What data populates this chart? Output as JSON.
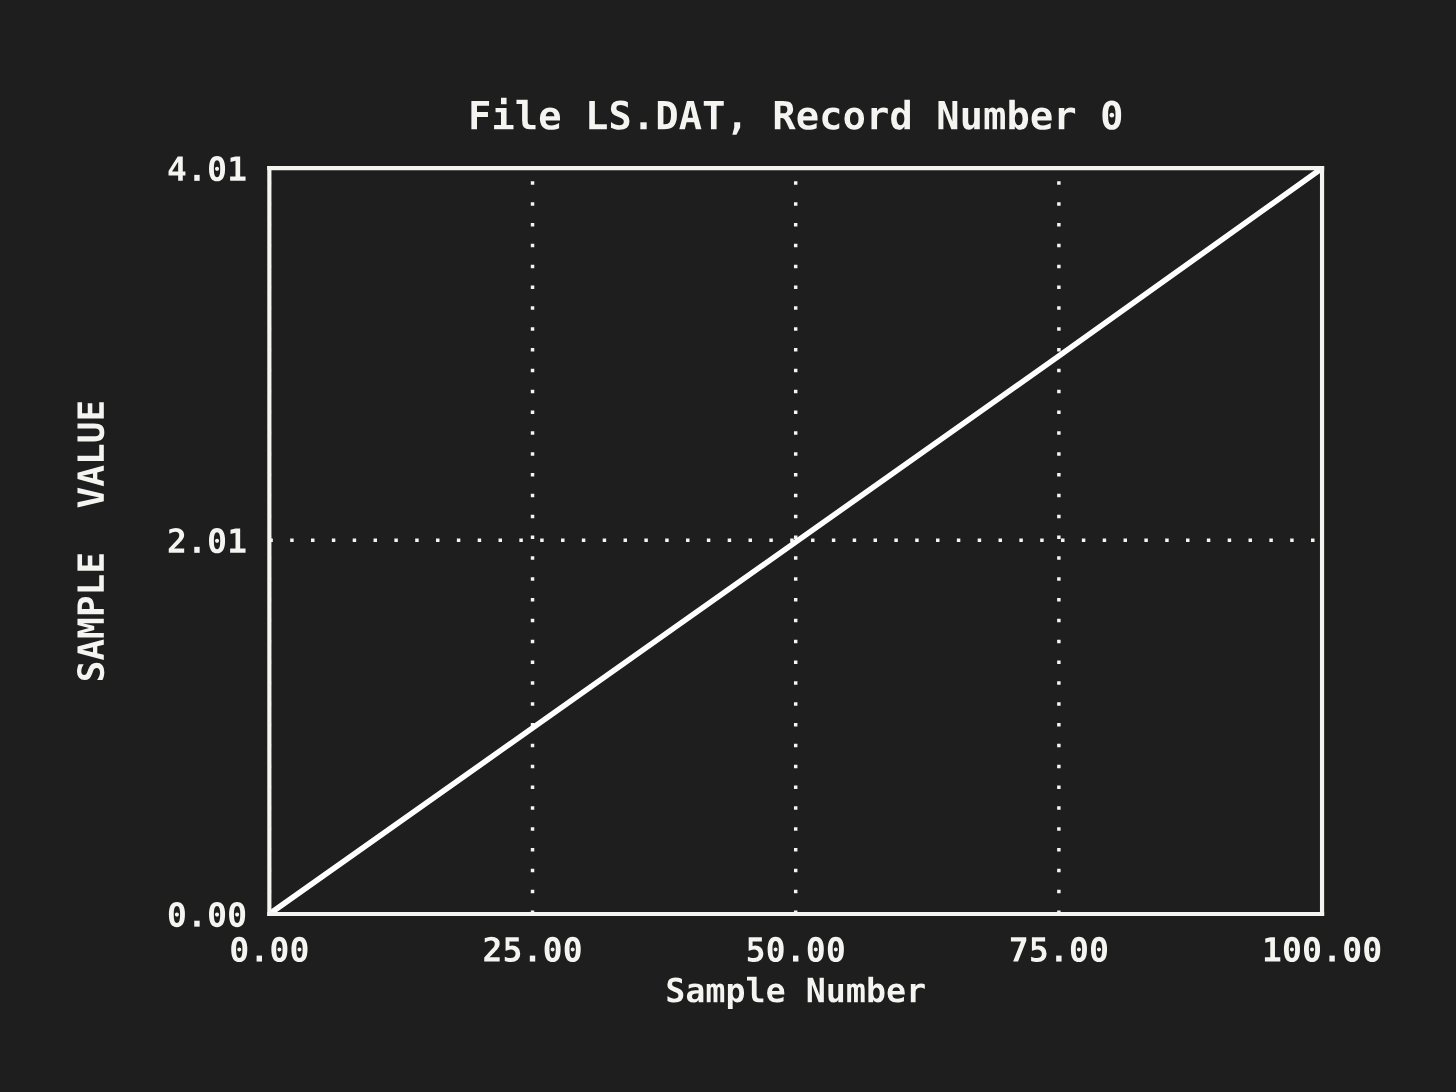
{
  "chart_data": {
    "type": "line",
    "title": "File LS.DAT, Record Number 0",
    "xlabel": "Sample Number",
    "ylabel": "SAMPLE  VALUE",
    "x": [
      0,
      25,
      50,
      75,
      100
    ],
    "series": [
      {
        "color": "#ffffff",
        "values": [
          0.0,
          1.0,
          2.0,
          3.0,
          4.01
        ]
      }
    ],
    "xlim": [
      0,
      100
    ],
    "ylim": [
      0,
      4.01
    ],
    "xticks": [
      {
        "value": 0,
        "label": "0.00"
      },
      {
        "value": 25,
        "label": "25.00"
      },
      {
        "value": 50,
        "label": "50.00"
      },
      {
        "value": 75,
        "label": "75.00"
      },
      {
        "value": 100,
        "label": "100.00"
      }
    ],
    "yticks": [
      {
        "value": 0,
        "label": "0.00"
      },
      {
        "value": 2.01,
        "label": "2.01"
      },
      {
        "value": 4.01,
        "label": "4.01"
      }
    ],
    "grid": true,
    "line_style": "solid",
    "marker": "none"
  }
}
